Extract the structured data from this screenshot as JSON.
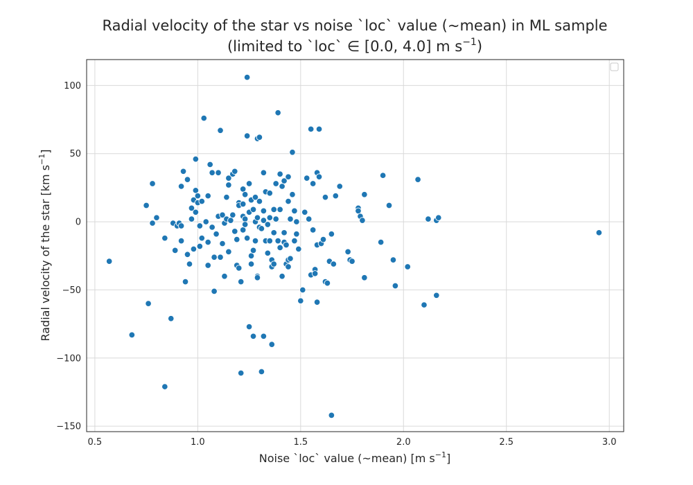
{
  "chart_data": {
    "type": "scatter",
    "title_line1": "Radial velocity of the star vs noise `loc` value (~mean) in ML sample",
    "title_line2": "(limited to `loc` ∈ [0.0, 4.0] m s",
    "title_line2_sup": "−1",
    "title_line2_end": ")",
    "xlabel": "Noise `loc` value (~mean) [m s",
    "xlabel_sup": "−1",
    "xlabel_end": "]",
    "ylabel": "Radial velocity of the star [km s",
    "ylabel_sup": "−1",
    "ylabel_end": "]",
    "xlim": [
      0.46,
      3.07
    ],
    "ylim": [
      -154,
      119
    ],
    "xticks": [
      0.5,
      1.0,
      1.5,
      2.0,
      2.5,
      3.0
    ],
    "xtick_labels": [
      "0.5",
      "1.0",
      "1.5",
      "2.0",
      "2.5",
      "3.0"
    ],
    "yticks": [
      100,
      50,
      0,
      -50,
      -100,
      -150
    ],
    "ytick_labels": [
      "100",
      "50",
      "0",
      "−50",
      "−100",
      "−150"
    ],
    "grid": true,
    "legend": "top-right (empty)",
    "color": "#1f77b4",
    "points": [
      [
        0.57,
        -29
      ],
      [
        0.68,
        -83
      ],
      [
        0.75,
        12
      ],
      [
        0.76,
        -60
      ],
      [
        0.78,
        28
      ],
      [
        0.78,
        -1
      ],
      [
        0.8,
        3
      ],
      [
        0.84,
        -121
      ],
      [
        0.84,
        -12
      ],
      [
        0.87,
        -71
      ],
      [
        0.88,
        -1
      ],
      [
        0.89,
        -21
      ],
      [
        0.9,
        -3
      ],
      [
        0.91,
        -1
      ],
      [
        0.92,
        -14
      ],
      [
        0.92,
        26
      ],
      [
        0.92,
        -3
      ],
      [
        0.93,
        37
      ],
      [
        0.94,
        -44
      ],
      [
        0.95,
        31
      ],
      [
        0.95,
        -24
      ],
      [
        0.96,
        -31
      ],
      [
        0.97,
        2
      ],
      [
        0.97,
        10
      ],
      [
        0.98,
        16
      ],
      [
        0.98,
        -20
      ],
      [
        0.99,
        46
      ],
      [
        0.99,
        23
      ],
      [
        0.99,
        7
      ],
      [
        1.0,
        14
      ],
      [
        1.0,
        19
      ],
      [
        1.01,
        -18
      ],
      [
        1.01,
        -3
      ],
      [
        1.02,
        15
      ],
      [
        1.02,
        -12
      ],
      [
        1.03,
        76
      ],
      [
        1.04,
        0
      ],
      [
        1.05,
        19
      ],
      [
        1.05,
        -32
      ],
      [
        1.05,
        -15
      ],
      [
        1.06,
        42
      ],
      [
        1.07,
        36
      ],
      [
        1.07,
        -4
      ],
      [
        1.08,
        -26
      ],
      [
        1.08,
        -51
      ],
      [
        1.09,
        -9
      ],
      [
        1.1,
        36
      ],
      [
        1.1,
        4
      ],
      [
        1.11,
        -26
      ],
      [
        1.11,
        67
      ],
      [
        1.12,
        5
      ],
      [
        1.12,
        -16
      ],
      [
        1.13,
        -40
      ],
      [
        1.13,
        -1
      ],
      [
        1.14,
        2
      ],
      [
        1.14,
        18
      ],
      [
        1.15,
        32
      ],
      [
        1.15,
        27
      ],
      [
        1.15,
        -22
      ],
      [
        1.16,
        1
      ],
      [
        1.17,
        5
      ],
      [
        1.17,
        35
      ],
      [
        1.18,
        -7
      ],
      [
        1.18,
        37
      ],
      [
        1.19,
        -13
      ],
      [
        1.19,
        -32
      ],
      [
        1.2,
        14
      ],
      [
        1.2,
        -34
      ],
      [
        1.2,
        12
      ],
      [
        1.21,
        -44
      ],
      [
        1.21,
        -111
      ],
      [
        1.22,
        4
      ],
      [
        1.22,
        -6
      ],
      [
        1.22,
        13
      ],
      [
        1.22,
        24
      ],
      [
        1.23,
        2
      ],
      [
        1.23,
        20
      ],
      [
        1.23,
        -2
      ],
      [
        1.24,
        106
      ],
      [
        1.24,
        63
      ],
      [
        1.24,
        -12
      ],
      [
        1.25,
        -77
      ],
      [
        1.25,
        7
      ],
      [
        1.25,
        28
      ],
      [
        1.26,
        -25
      ],
      [
        1.26,
        16
      ],
      [
        1.26,
        -31
      ],
      [
        1.27,
        -21
      ],
      [
        1.27,
        9
      ],
      [
        1.27,
        -84
      ],
      [
        1.28,
        18
      ],
      [
        1.28,
        0
      ],
      [
        1.28,
        -14
      ],
      [
        1.29,
        -40
      ],
      [
        1.29,
        61
      ],
      [
        1.29,
        3
      ],
      [
        1.29,
        -41
      ],
      [
        1.3,
        62
      ],
      [
        1.3,
        15
      ],
      [
        1.3,
        -4
      ],
      [
        1.31,
        -110
      ],
      [
        1.31,
        -5
      ],
      [
        1.32,
        8
      ],
      [
        1.32,
        1
      ],
      [
        1.32,
        36
      ],
      [
        1.32,
        -84
      ],
      [
        1.33,
        22
      ],
      [
        1.33,
        -14
      ],
      [
        1.34,
        -23
      ],
      [
        1.34,
        -2
      ],
      [
        1.35,
        21
      ],
      [
        1.35,
        -14
      ],
      [
        1.35,
        3
      ],
      [
        1.36,
        -33
      ],
      [
        1.36,
        -90
      ],
      [
        1.36,
        -28
      ],
      [
        1.37,
        -8
      ],
      [
        1.37,
        9
      ],
      [
        1.37,
        -31
      ],
      [
        1.38,
        28
      ],
      [
        1.38,
        2
      ],
      [
        1.39,
        80
      ],
      [
        1.39,
        -14
      ],
      [
        1.4,
        35
      ],
      [
        1.4,
        -19
      ],
      [
        1.4,
        9
      ],
      [
        1.41,
        26
      ],
      [
        1.41,
        -40
      ],
      [
        1.42,
        -15
      ],
      [
        1.42,
        30
      ],
      [
        1.42,
        -8
      ],
      [
        1.43,
        -31
      ],
      [
        1.43,
        -17
      ],
      [
        1.44,
        -28
      ],
      [
        1.44,
        15
      ],
      [
        1.44,
        -33
      ],
      [
        1.44,
        33
      ],
      [
        1.45,
        -27
      ],
      [
        1.45,
        2
      ],
      [
        1.46,
        20
      ],
      [
        1.46,
        51
      ],
      [
        1.47,
        8
      ],
      [
        1.47,
        -14
      ],
      [
        1.48,
        0
      ],
      [
        1.48,
        -9
      ],
      [
        1.49,
        -20
      ],
      [
        1.5,
        -58
      ],
      [
        1.51,
        -50
      ],
      [
        1.52,
        7
      ],
      [
        1.53,
        32
      ],
      [
        1.54,
        2
      ],
      [
        1.55,
        -39
      ],
      [
        1.55,
        68
      ],
      [
        1.56,
        28
      ],
      [
        1.56,
        -6
      ],
      [
        1.57,
        -35
      ],
      [
        1.57,
        -38
      ],
      [
        1.58,
        -59
      ],
      [
        1.58,
        36
      ],
      [
        1.58,
        -17
      ],
      [
        1.59,
        33
      ],
      [
        1.59,
        68
      ],
      [
        1.6,
        -16
      ],
      [
        1.61,
        -13
      ],
      [
        1.62,
        -44
      ],
      [
        1.62,
        18
      ],
      [
        1.63,
        -45
      ],
      [
        1.64,
        -29
      ],
      [
        1.65,
        -9
      ],
      [
        1.65,
        -142
      ],
      [
        1.66,
        -31
      ],
      [
        1.67,
        19
      ],
      [
        1.69,
        26
      ],
      [
        1.73,
        -22
      ],
      [
        1.74,
        -28
      ],
      [
        1.75,
        -29
      ],
      [
        1.78,
        10
      ],
      [
        1.78,
        8
      ],
      [
        1.79,
        4
      ],
      [
        1.8,
        1
      ],
      [
        1.81,
        -41
      ],
      [
        1.81,
        20
      ],
      [
        1.89,
        -15
      ],
      [
        1.9,
        34
      ],
      [
        1.93,
        12
      ],
      [
        1.95,
        -28
      ],
      [
        1.96,
        -47
      ],
      [
        2.02,
        -33
      ],
      [
        2.07,
        31
      ],
      [
        2.1,
        -61
      ],
      [
        2.12,
        2
      ],
      [
        2.16,
        1
      ],
      [
        2.16,
        -54
      ],
      [
        2.17,
        3
      ],
      [
        2.95,
        -8
      ]
    ]
  }
}
